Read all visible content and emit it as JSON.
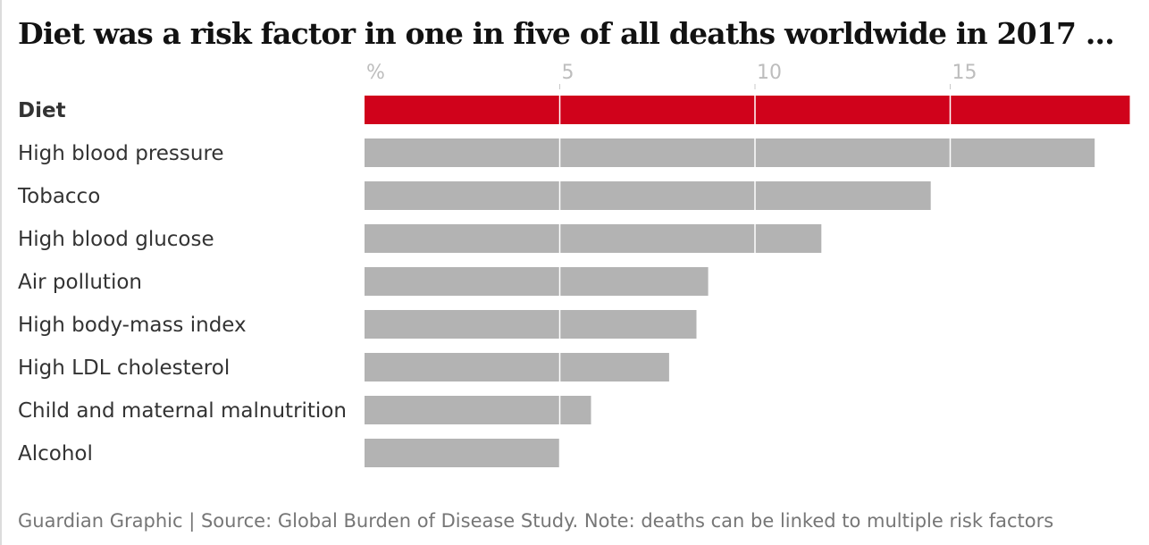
{
  "title": "Diet was a risk factor in one in five of all deaths worldwide in 2017 ...",
  "footer": "Guardian Graphic | Source: Global Burden of Disease Study. Note: deaths can be linked to multiple risk factors",
  "colors": {
    "highlight": "#d0021b",
    "bar": "#b3b3b3",
    "gridline": "#ffffff",
    "tick_text": "#bdbdbd",
    "label_text": "#333333"
  },
  "chart_data": {
    "type": "bar",
    "orientation": "horizontal",
    "categories": [
      "Diet",
      "High blood pressure",
      "Tobacco",
      "High blood glucose",
      "Air pollution",
      "High body-mass index",
      "High LDL cholesterol",
      "Child and maternal malnutrition",
      "Alcohol"
    ],
    "values": [
      19.6,
      18.7,
      14.5,
      11.7,
      8.8,
      8.5,
      7.8,
      5.8,
      5.0
    ],
    "highlight_category": "Diet",
    "x_ticks": [
      "%",
      "5",
      "10",
      "15"
    ],
    "x_tick_values": [
      0,
      5,
      10,
      15
    ],
    "xlim": [
      0,
      19.6
    ],
    "grid": true
  }
}
